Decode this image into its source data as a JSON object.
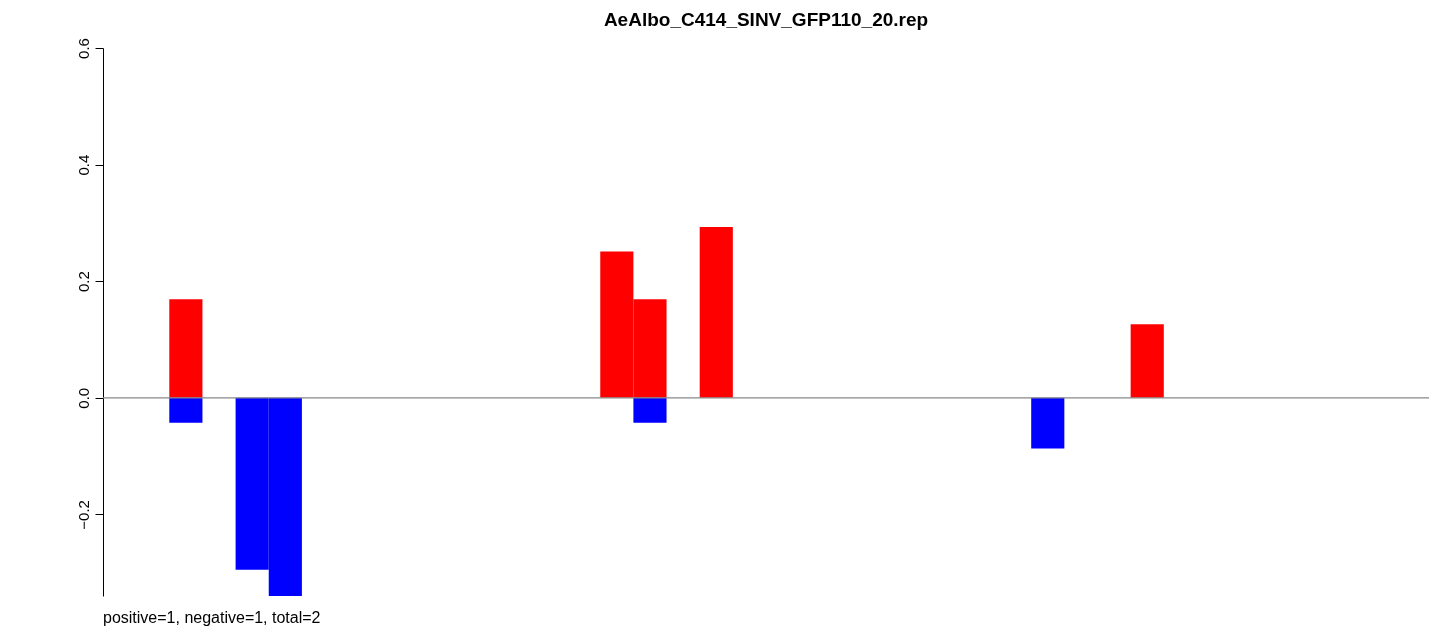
{
  "chart_data": {
    "type": "bar",
    "title": "AeAlbo_C414_SINV_GFP110_20.rep",
    "categories": [
      null,
      null,
      null,
      null,
      null,
      null,
      null,
      null,
      null,
      null,
      null,
      null,
      null,
      null,
      null,
      null,
      null,
      null,
      null,
      null,
      null,
      null,
      null,
      null,
      null,
      null,
      null,
      null,
      null,
      null,
      null,
      null,
      null,
      null,
      null,
      null,
      null,
      null,
      null,
      null
    ],
    "series": [
      {
        "color": "#ff0000",
        "values": [
          null,
          null,
          0.169,
          null,
          null,
          null,
          null,
          null,
          null,
          null,
          null,
          null,
          null,
          null,
          null,
          0.251,
          0.169,
          null,
          0.293,
          null,
          null,
          null,
          null,
          null,
          null,
          null,
          null,
          null,
          null,
          null,
          null,
          0.126,
          null,
          null,
          null,
          null,
          null,
          null,
          null,
          null
        ]
      },
      {
        "color": "#0000ff",
        "values": [
          null,
          null,
          -0.043,
          null,
          -0.295,
          -0.34,
          null,
          null,
          null,
          null,
          null,
          null,
          null,
          null,
          null,
          null,
          -0.043,
          null,
          null,
          null,
          null,
          null,
          null,
          null,
          null,
          null,
          null,
          null,
          -0.087,
          null,
          null,
          null,
          null,
          null,
          null,
          null,
          null,
          null,
          null,
          null
        ]
      }
    ],
    "ylim": [
      -0.34,
      0.6
    ],
    "yticks": [
      {
        "value": -0.2,
        "label": "−0.2"
      },
      {
        "value": 0,
        "label": "0.0"
      },
      {
        "value": 0.2,
        "label": "0.2"
      },
      {
        "value": 0.4,
        "label": "0.4"
      },
      {
        "value": 0.6,
        "label": "0.6"
      }
    ],
    "tick_labels": "y",
    "legend": false,
    "ref_lines": [
      {
        "axis": "y",
        "value": 0,
        "color": "#888888"
      }
    ],
    "annotations": [
      "positive=1, negative=1, total=2"
    ]
  }
}
